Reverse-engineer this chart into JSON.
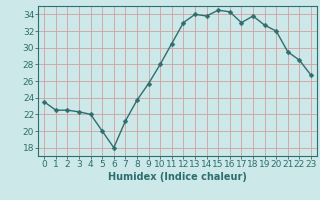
{
  "x": [
    0,
    1,
    2,
    3,
    4,
    5,
    6,
    7,
    8,
    9,
    10,
    11,
    12,
    13,
    14,
    15,
    16,
    17,
    18,
    19,
    20,
    21,
    22,
    23
  ],
  "y": [
    23.5,
    22.5,
    22.5,
    22.3,
    22.0,
    20.0,
    18.0,
    21.2,
    23.7,
    25.7,
    28.0,
    30.5,
    33.0,
    34.0,
    33.8,
    34.5,
    34.3,
    33.0,
    33.8,
    32.7,
    32.0,
    29.5,
    28.5,
    26.7
  ],
  "line_color": "#2e6e6e",
  "marker": "D",
  "marker_size": 2.5,
  "bg_color": "#cce8e8",
  "grid_color": "#b0d0d0",
  "xlabel": "Humidex (Indice chaleur)",
  "ylim": [
    17,
    35
  ],
  "xlim": [
    -0.5,
    23.5
  ],
  "yticks": [
    18,
    20,
    22,
    24,
    26,
    28,
    30,
    32,
    34
  ],
  "xtick_labels": [
    "0",
    "1",
    "2",
    "3",
    "4",
    "5",
    "6",
    "7",
    "8",
    "9",
    "10",
    "11",
    "12",
    "13",
    "14",
    "15",
    "16",
    "17",
    "18",
    "19",
    "20",
    "21",
    "22",
    "23"
  ],
  "xlabel_fontsize": 7,
  "tick_fontsize": 6.5,
  "line_width": 1.0
}
